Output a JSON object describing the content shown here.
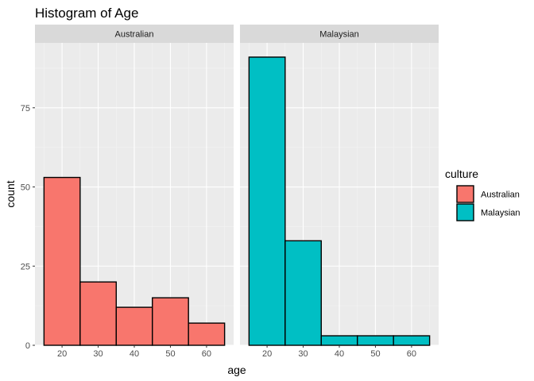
{
  "chart_data": {
    "type": "bar",
    "title": "Histogram of Age",
    "xlabel": "age",
    "ylabel": "count",
    "xlim": [
      12.5,
      67.5
    ],
    "ylim": [
      0,
      95.5
    ],
    "x_ticks": [
      20,
      30,
      40,
      50,
      60
    ],
    "y_ticks": [
      0,
      25,
      50,
      75
    ],
    "y_minor_ticks": [
      12.5,
      37.5,
      62.5,
      87.5
    ],
    "x_minor_ticks": [
      15,
      25,
      35,
      45,
      55,
      65
    ],
    "bin_width": 10,
    "grid": true,
    "legend": {
      "title": "culture",
      "position": "right",
      "entries": [
        {
          "name": "Australian",
          "color": "#F8766D"
        },
        {
          "name": "Malaysian",
          "color": "#00BFC4"
        }
      ]
    },
    "facets": [
      {
        "label": "Australian",
        "color": "#F8766D",
        "bins": [
          {
            "center": 20,
            "count": 53
          },
          {
            "center": 30,
            "count": 20
          },
          {
            "center": 40,
            "count": 12
          },
          {
            "center": 50,
            "count": 15
          },
          {
            "center": 60,
            "count": 7
          }
        ]
      },
      {
        "label": "Malaysian",
        "color": "#00BFC4",
        "bins": [
          {
            "center": 20,
            "count": 91
          },
          {
            "center": 30,
            "count": 33
          },
          {
            "center": 40,
            "count": 3
          },
          {
            "center": 50,
            "count": 3
          },
          {
            "center": 60,
            "count": 3
          }
        ]
      }
    ]
  },
  "colors": {
    "panel_background": "#EBEBEB",
    "strip_background": "#D9D9D9",
    "grid_major": "#FFFFFF",
    "bar_outline": "#000000"
  }
}
